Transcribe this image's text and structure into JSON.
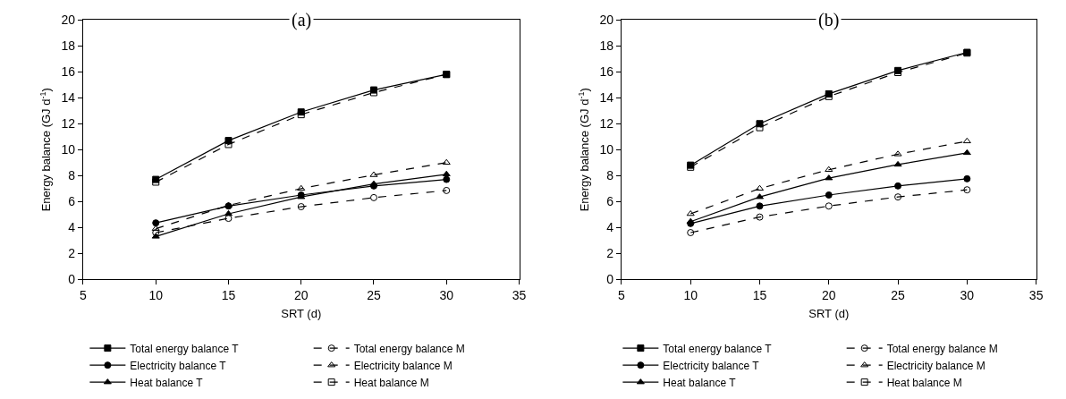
{
  "chart_data": [
    {
      "type": "line",
      "title": "(a)",
      "xlabel": "SRT (d)",
      "ylabel": "Energy balance (GJ d$^{-1}$)",
      "x": [
        10,
        15,
        20,
        25,
        30
      ],
      "xlim": [
        5,
        35
      ],
      "xticks": [
        5,
        10,
        15,
        20,
        25,
        30,
        35
      ],
      "ylim": [
        0,
        20
      ],
      "yticks": [
        0,
        2,
        4,
        6,
        8,
        10,
        12,
        14,
        16,
        18,
        20
      ],
      "grid": false,
      "legend": "bottom",
      "series": [
        {
          "name": "Total energy balance T",
          "color": "#000000",
          "marker": "square",
          "line_style": "solid",
          "values": [
            7.7,
            10.7,
            12.9,
            14.6,
            15.8
          ]
        },
        {
          "name": "Electricity balance T",
          "color": "#000000",
          "marker": "circle",
          "line_style": "solid",
          "values": [
            4.35,
            5.65,
            6.5,
            7.2,
            7.7
          ]
        },
        {
          "name": "Heat balance T",
          "color": "#000000",
          "marker": "triangle",
          "line_style": "solid",
          "values": [
            3.3,
            5.05,
            6.35,
            7.35,
            8.1
          ]
        },
        {
          "name": "Total energy balance M",
          "color": "#000000",
          "marker": "circle",
          "line_style": "dashed",
          "values": [
            3.6,
            4.7,
            5.6,
            6.3,
            6.85
          ]
        },
        {
          "name": "Electricity balance M",
          "color": "#000000",
          "marker": "triangle",
          "line_style": "dashed",
          "values": [
            3.9,
            5.7,
            7.0,
            8.05,
            9.0
          ]
        },
        {
          "name": "Heat balance M",
          "color": "#000000",
          "marker": "square",
          "line_style": "dashed",
          "values": [
            7.5,
            10.4,
            12.7,
            14.4,
            15.8
          ]
        }
      ]
    },
    {
      "type": "line",
      "title": "(b)",
      "xlabel": "SRT (d)",
      "ylabel": "Energy balance (GJ d$^{-1}$)",
      "x": [
        10,
        15,
        20,
        25,
        30
      ],
      "xlim": [
        5,
        35
      ],
      "xticks": [
        5,
        10,
        15,
        20,
        25,
        30,
        35
      ],
      "ylim": [
        0,
        20
      ],
      "yticks": [
        0,
        2,
        4,
        6,
        8,
        10,
        12,
        14,
        16,
        18,
        20
      ],
      "grid": false,
      "legend": "bottom",
      "series": [
        {
          "name": "Total energy balance T",
          "color": "#000000",
          "marker": "square",
          "line_style": "solid",
          "values": [
            8.8,
            12.0,
            14.3,
            16.1,
            17.5
          ]
        },
        {
          "name": "Electricity balance T",
          "color": "#000000",
          "marker": "circle",
          "line_style": "solid",
          "values": [
            4.3,
            5.65,
            6.5,
            7.2,
            7.75
          ]
        },
        {
          "name": "Heat balance T",
          "color": "#000000",
          "marker": "triangle",
          "line_style": "solid",
          "values": [
            4.45,
            6.35,
            7.8,
            8.85,
            9.75
          ]
        },
        {
          "name": "Total energy balance M",
          "color": "#000000",
          "marker": "circle",
          "line_style": "dashed",
          "values": [
            3.6,
            4.8,
            5.65,
            6.35,
            6.9
          ]
        },
        {
          "name": "Electricity balance M",
          "color": "#000000",
          "marker": "triangle",
          "line_style": "dashed",
          "values": [
            5.05,
            7.0,
            8.45,
            9.65,
            10.65
          ]
        },
        {
          "name": "Heat balance M",
          "color": "#000000",
          "marker": "square",
          "line_style": "dashed",
          "values": [
            8.65,
            11.7,
            14.1,
            15.95,
            17.45
          ]
        }
      ]
    }
  ]
}
